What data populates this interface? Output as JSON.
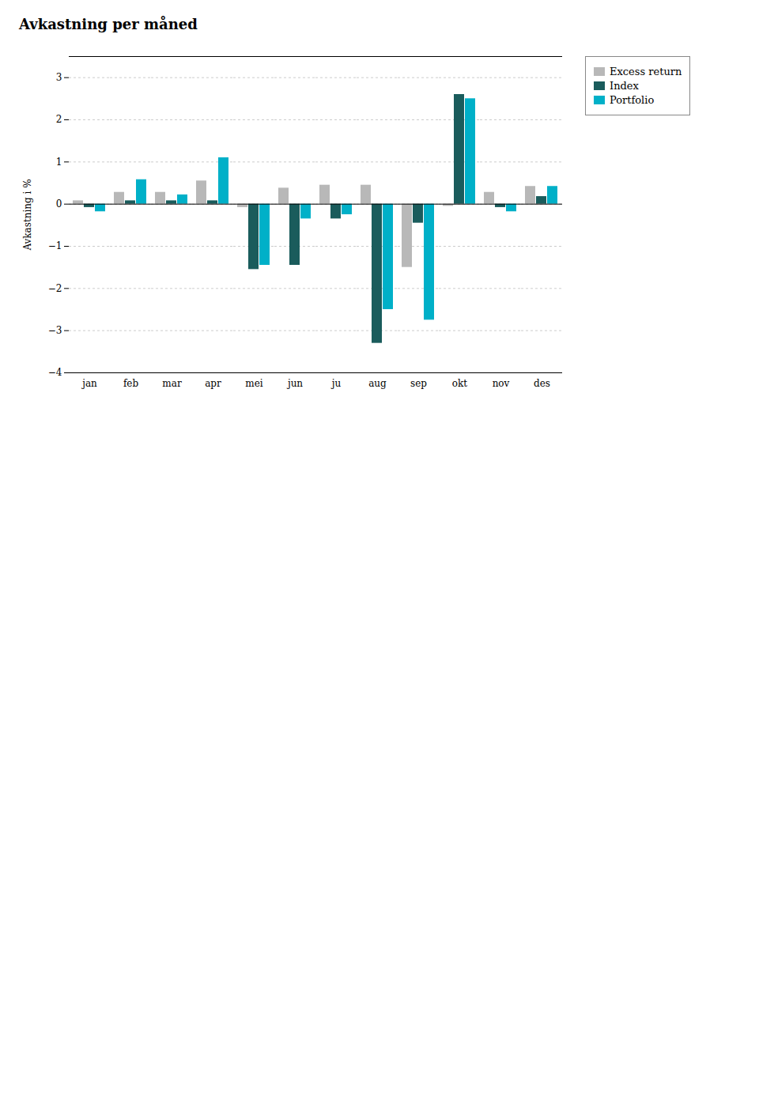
{
  "chart_data": {
    "type": "bar",
    "title": "Avkastning per måned",
    "y_label": "Avkastning i %",
    "categories": [
      "jan",
      "feb",
      "mar",
      "apr",
      "mei",
      "jun",
      "ju",
      "aug",
      "sep",
      "okt",
      "nov",
      "des"
    ],
    "series": [
      {
        "name": "Excess return",
        "color": "#b8b8b8",
        "values": [
          0.08,
          0.28,
          0.28,
          0.55,
          -0.08,
          0.38,
          0.45,
          0.45,
          -1.5,
          -0.05,
          0.28,
          0.42
        ]
      },
      {
        "name": "Index",
        "color": "#1a5c5c",
        "values": [
          -0.08,
          0.08,
          0.08,
          0.08,
          -1.55,
          -1.45,
          -0.35,
          -3.3,
          -0.45,
          2.6,
          -0.08,
          0.18
        ]
      },
      {
        "name": "Portfolio",
        "color": "#00b0c8",
        "values": [
          -0.18,
          0.58,
          0.22,
          1.1,
          -1.45,
          -0.35,
          -0.25,
          -2.5,
          -2.75,
          2.5,
          -0.18,
          0.42
        ]
      }
    ],
    "ylim": [
      -4,
      3.5
    ],
    "yticks": [
      -4,
      -3,
      -2,
      -1,
      0,
      1,
      2,
      3
    ],
    "grid": true,
    "legend": "right"
  }
}
